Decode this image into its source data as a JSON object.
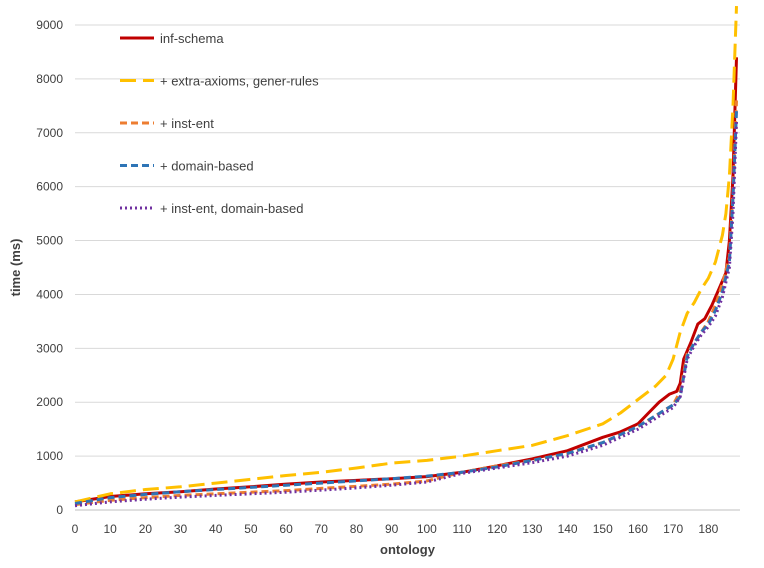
{
  "chart_data": {
    "type": "line",
    "xlabel": "ontology",
    "ylabel": "time (ms)",
    "xlim": [
      0,
      189
    ],
    "ylim": [
      0,
      9000
    ],
    "x_ticks": [
      0,
      10,
      20,
      30,
      40,
      50,
      60,
      70,
      80,
      90,
      100,
      110,
      120,
      130,
      140,
      150,
      160,
      170,
      180
    ],
    "y_ticks": [
      0,
      1000,
      2000,
      3000,
      4000,
      5000,
      6000,
      7000,
      8000,
      9000
    ],
    "grid": "horizontal",
    "legend_position": "top-left",
    "series": [
      {
        "name": "inf-schema",
        "color": "#c00000",
        "style": "solid",
        "x": [
          0,
          10,
          20,
          30,
          40,
          50,
          60,
          70,
          80,
          90,
          100,
          110,
          120,
          130,
          140,
          150,
          155,
          160,
          163,
          166,
          169,
          171,
          172,
          173,
          175,
          177,
          179,
          181,
          183,
          185,
          186,
          187,
          188
        ],
        "y": [
          150,
          250,
          300,
          340,
          390,
          430,
          480,
          520,
          550,
          580,
          620,
          700,
          820,
          950,
          1100,
          1350,
          1450,
          1600,
          1800,
          2000,
          2150,
          2200,
          2350,
          2800,
          3100,
          3450,
          3550,
          3800,
          4100,
          4400,
          5000,
          6200,
          8400
        ]
      },
      {
        "name": "+ extra-axioms, gener-rules",
        "color": "#ffc000",
        "style": "long-dash",
        "x": [
          0,
          10,
          20,
          30,
          40,
          50,
          60,
          70,
          80,
          90,
          100,
          110,
          120,
          130,
          140,
          150,
          155,
          160,
          165,
          168,
          170,
          172,
          174,
          176,
          178,
          180,
          182,
          184,
          185,
          186,
          187,
          188
        ],
        "y": [
          150,
          300,
          380,
          430,
          500,
          570,
          640,
          700,
          780,
          870,
          920,
          1000,
          1100,
          1200,
          1380,
          1600,
          1800,
          2050,
          2300,
          2500,
          2800,
          3300,
          3650,
          3850,
          4100,
          4300,
          4600,
          5100,
          5500,
          6200,
          7500,
          9350
        ]
      },
      {
        "name": "+ inst-ent",
        "color": "#ed7d31",
        "style": "dash",
        "x": [
          0,
          10,
          20,
          30,
          40,
          50,
          60,
          70,
          80,
          90,
          100,
          110,
          120,
          130,
          140,
          150,
          160,
          165,
          170,
          172,
          174,
          176,
          178,
          180,
          182,
          184,
          186,
          187,
          188
        ],
        "y": [
          100,
          180,
          230,
          270,
          300,
          330,
          360,
          400,
          440,
          480,
          540,
          700,
          820,
          920,
          1050,
          1250,
          1550,
          1750,
          1950,
          2200,
          2900,
          3100,
          3300,
          3500,
          3800,
          4200,
          4700,
          5900,
          7600
        ]
      },
      {
        "name": "+ domain-based",
        "color": "#2e75b6",
        "style": "dash",
        "x": [
          0,
          10,
          20,
          30,
          40,
          50,
          60,
          70,
          80,
          90,
          100,
          110,
          120,
          130,
          140,
          150,
          160,
          165,
          170,
          172,
          174,
          176,
          178,
          180,
          182,
          184,
          186,
          187,
          188
        ],
        "y": [
          120,
          230,
          290,
          340,
          380,
          420,
          460,
          500,
          540,
          580,
          630,
          700,
          800,
          920,
          1050,
          1250,
          1550,
          1750,
          1950,
          2100,
          2850,
          3100,
          3300,
          3450,
          3700,
          4050,
          4600,
          5800,
          7400
        ]
      },
      {
        "name": "+ inst-ent, domain-based",
        "color": "#7030a0",
        "style": "dot",
        "x": [
          0,
          10,
          20,
          30,
          40,
          50,
          60,
          70,
          80,
          90,
          100,
          110,
          120,
          130,
          140,
          150,
          160,
          165,
          170,
          172,
          174,
          176,
          178,
          180,
          182,
          184,
          186,
          187,
          188
        ],
        "y": [
          80,
          150,
          200,
          240,
          270,
          300,
          330,
          370,
          410,
          460,
          520,
          680,
          780,
          880,
          1000,
          1200,
          1500,
          1700,
          1900,
          2100,
          2800,
          3050,
          3250,
          3400,
          3600,
          3950,
          4500,
          5500,
          7200
        ]
      }
    ]
  }
}
